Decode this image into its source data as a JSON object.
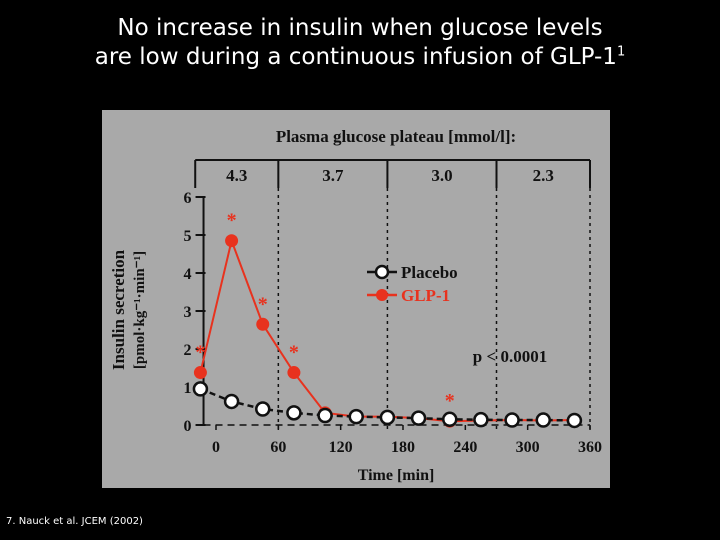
{
  "slide": {
    "title_line1": "No increase in insulin when glucose levels",
    "title_line2": "are low during a continuous infusion of GLP-1",
    "title_superscript": "1",
    "citation": "7. Nauck et al. JCEM (2002)"
  },
  "chart_data": {
    "type": "line",
    "header": "Plasma glucose plateau [mmol/l]:",
    "plateaus": [
      {
        "label": "4.3",
        "x_start": -20,
        "x_end": 60
      },
      {
        "label": "3.7",
        "x_start": 60,
        "x_end": 165
      },
      {
        "label": "3.0",
        "x_start": 165,
        "x_end": 270
      },
      {
        "label": "2.3",
        "x_start": 270,
        "x_end": 360
      }
    ],
    "xlabel": "Time [min]",
    "ylabel_line1": "Insulin secretion",
    "ylabel_line2": "[pmol·kg⁻¹·min⁻¹]",
    "xlim": [
      -30,
      360
    ],
    "ylim": [
      0,
      6
    ],
    "xticks": [
      0,
      60,
      120,
      180,
      240,
      300,
      360
    ],
    "yticks": [
      0,
      1,
      2,
      3,
      4,
      5,
      6
    ],
    "annotation": "p < 0.0001",
    "series": [
      {
        "name": "Placebo",
        "color": "#ffffff",
        "marker": "open-circle",
        "x": [
          -15,
          15,
          45,
          75,
          105,
          135,
          165,
          195,
          225,
          255,
          285,
          315,
          345
        ],
        "y": [
          0.95,
          0.62,
          0.42,
          0.32,
          0.25,
          0.22,
          0.2,
          0.18,
          0.15,
          0.14,
          0.13,
          0.13,
          0.12
        ]
      },
      {
        "name": "GLP-1",
        "color": "#e8321e",
        "marker": "filled-circle",
        "x": [
          -15,
          15,
          45,
          75,
          105,
          135,
          165,
          195,
          225,
          255,
          285,
          315,
          345
        ],
        "y": [
          1.38,
          4.85,
          2.65,
          1.38,
          0.32,
          0.22,
          0.22,
          0.18,
          0.1,
          0.12,
          0.13,
          0.12,
          0.13
        ]
      }
    ],
    "significance": [
      {
        "x": -15,
        "y": 1.38,
        "label": "*"
      },
      {
        "x": 15,
        "y": 4.85,
        "label": "*"
      },
      {
        "x": 45,
        "y": 2.65,
        "label": "*"
      },
      {
        "x": 75,
        "y": 1.38,
        "label": "*"
      },
      {
        "x": 225,
        "y": 0.1,
        "label": "*"
      }
    ],
    "legend_position": "right"
  }
}
